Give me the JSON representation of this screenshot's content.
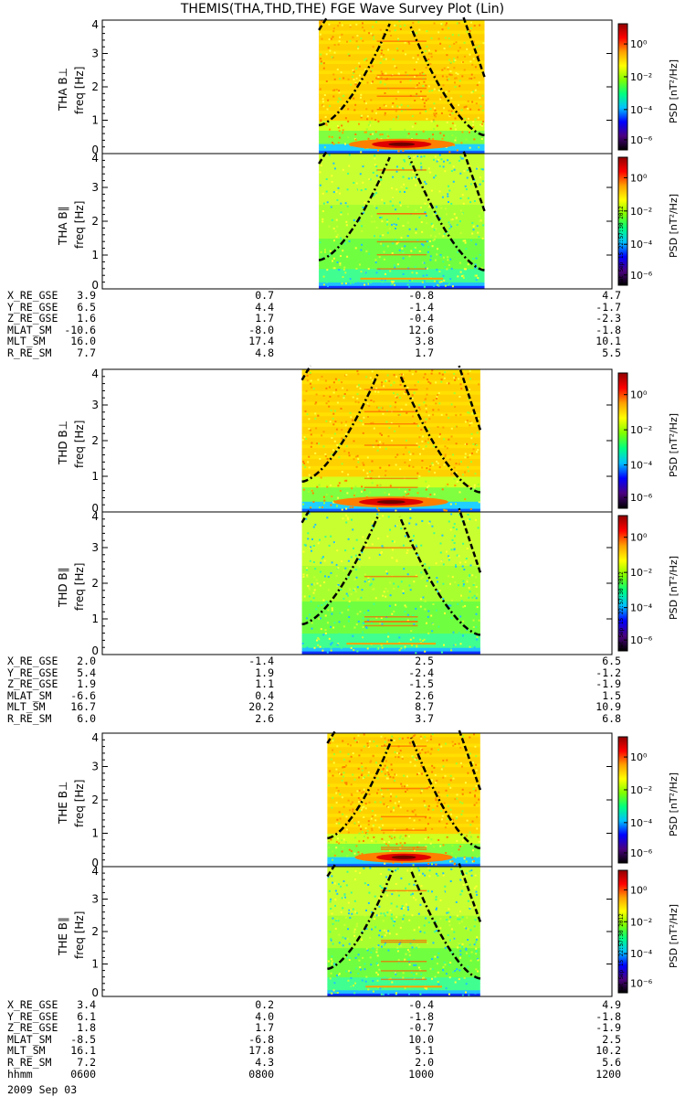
{
  "title": "THEMIS(THA,THD,THE) FGE Wave Survey Plot (Lin)",
  "colorbar": {
    "label": "PSD [nT²/Hz]",
    "ticks": [
      "10⁰",
      "10⁻²",
      "10⁻⁴",
      "10⁻⁶"
    ],
    "colors": [
      "#000000",
      "#4b0080",
      "#0000ff",
      "#00c0ff",
      "#00ff80",
      "#80ff00",
      "#ffff00",
      "#ffa000",
      "#ff0000",
      "#900000"
    ]
  },
  "timestamp": "Sat Sep 15 22:57:30 2012",
  "chart_data": [
    {
      "type": "heatmap",
      "probe": "THA",
      "component": "THA B⊥",
      "ylabel": "freq [Hz]",
      "yticks": [
        "0",
        "1",
        "2",
        "3",
        "4"
      ],
      "ylim": [
        0,
        4
      ],
      "xlim": [
        600,
        1200
      ],
      "data_span": [
        855,
        1050
      ]
    },
    {
      "type": "heatmap",
      "probe": "THA",
      "component": "THA B∥",
      "ylabel": "freq [Hz]",
      "yticks": [
        "0",
        "1",
        "2",
        "3",
        "4"
      ],
      "ylim": [
        0,
        4
      ],
      "xlim": [
        600,
        1200
      ],
      "data_span": [
        855,
        1050
      ]
    },
    {
      "type": "heatmap",
      "probe": "THD",
      "component": "THD B⊥",
      "ylabel": "freq [Hz]",
      "yticks": [
        "0",
        "1",
        "2",
        "3",
        "4"
      ],
      "ylim": [
        0,
        4
      ],
      "xlim": [
        600,
        1200
      ],
      "data_span": [
        835,
        1045
      ]
    },
    {
      "type": "heatmap",
      "probe": "THD",
      "component": "THD B∥",
      "ylabel": "freq [Hz]",
      "yticks": [
        "0",
        "1",
        "2",
        "3",
        "4"
      ],
      "ylim": [
        0,
        4
      ],
      "xlim": [
        600,
        1200
      ],
      "data_span": [
        835,
        1045
      ]
    },
    {
      "type": "heatmap",
      "probe": "THE",
      "component": "THE B⊥",
      "ylabel": "freq [Hz]",
      "yticks": [
        "0",
        "1",
        "2",
        "3",
        "4"
      ],
      "ylim": [
        0,
        4
      ],
      "xlim": [
        600,
        1200
      ],
      "data_span": [
        865,
        1045
      ]
    },
    {
      "type": "heatmap",
      "probe": "THE",
      "component": "THE B∥",
      "ylabel": "freq [Hz]",
      "yticks": [
        "0",
        "1",
        "2",
        "3",
        "4"
      ],
      "ylim": [
        0,
        4
      ],
      "xlim": [
        600,
        1200
      ],
      "data_span": [
        865,
        1045
      ]
    }
  ],
  "ephemeris": [
    {
      "probe": "THA",
      "rows": [
        {
          "label": "X_RE_GSE",
          "values": [
            "3.9",
            "0.7",
            "-0.8",
            "4.7"
          ]
        },
        {
          "label": "Y_RE_GSE",
          "values": [
            "6.5",
            "4.4",
            "-1.4",
            "-1.7"
          ]
        },
        {
          "label": "Z_RE_GSE",
          "values": [
            "1.6",
            "1.7",
            "-0.4",
            "-2.3"
          ]
        },
        {
          "label": "MLAT_SM",
          "values": [
            "-10.6",
            "-8.0",
            "12.6",
            "-1.8"
          ]
        },
        {
          "label": "MLT_SM",
          "values": [
            "16.0",
            "17.4",
            "3.8",
            "10.1"
          ]
        },
        {
          "label": "R_RE_SM",
          "values": [
            "7.7",
            "4.8",
            "1.7",
            "5.5"
          ]
        }
      ]
    },
    {
      "probe": "THD",
      "rows": [
        {
          "label": "X_RE_GSE",
          "values": [
            "2.0",
            "-1.4",
            "2.5",
            "6.5"
          ]
        },
        {
          "label": "Y_RE_GSE",
          "values": [
            "5.4",
            "1.9",
            "-2.4",
            "-1.2"
          ]
        },
        {
          "label": "Z_RE_GSE",
          "values": [
            "1.9",
            "1.1",
            "-1.5",
            "-1.9"
          ]
        },
        {
          "label": "MLAT_SM",
          "values": [
            "-6.6",
            "0.4",
            "2.6",
            "1.5"
          ]
        },
        {
          "label": "MLT_SM",
          "values": [
            "16.7",
            "20.2",
            "8.7",
            "10.9"
          ]
        },
        {
          "label": "R_RE_SM",
          "values": [
            "6.0",
            "2.6",
            "3.7",
            "6.8"
          ]
        }
      ]
    },
    {
      "probe": "THE",
      "rows": [
        {
          "label": "X_RE_GSE",
          "values": [
            "3.4",
            "0.2",
            "-0.4",
            "4.9"
          ]
        },
        {
          "label": "Y_RE_GSE",
          "values": [
            "6.1",
            "4.0",
            "-1.8",
            "-1.8"
          ]
        },
        {
          "label": "Z_RE_GSE",
          "values": [
            "1.8",
            "1.7",
            "-0.7",
            "-1.9"
          ]
        },
        {
          "label": "MLAT_SM",
          "values": [
            "-8.5",
            "-6.8",
            "10.0",
            "2.5"
          ]
        },
        {
          "label": "MLT_SM",
          "values": [
            "16.1",
            "17.8",
            "5.1",
            "10.2"
          ]
        },
        {
          "label": "R_RE_SM",
          "values": [
            "7.2",
            "4.3",
            "2.0",
            "5.6"
          ]
        },
        {
          "label": "hhmm",
          "values": [
            "0600",
            "0800",
            "1000",
            "1200"
          ]
        }
      ]
    }
  ],
  "date": "2009 Sep 03"
}
